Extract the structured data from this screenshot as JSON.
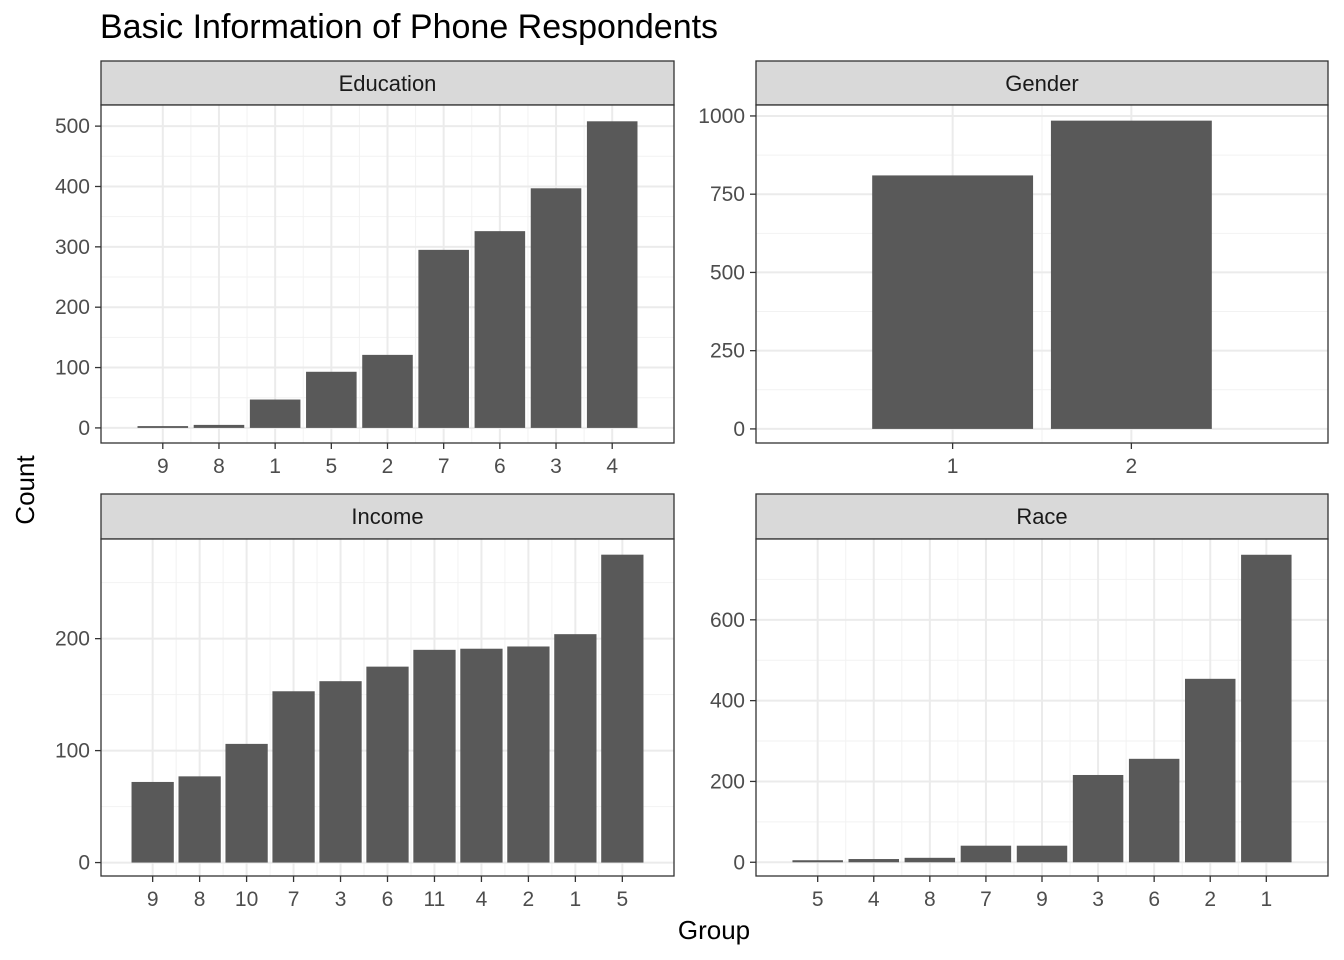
{
  "chart_data": {
    "type": "bar",
    "title": "Basic Information of Phone Respondents",
    "xlabel": "Group",
    "ylabel": "Count",
    "panels": [
      {
        "name": "Education",
        "categories": [
          "9",
          "8",
          "1",
          "5",
          "2",
          "7",
          "6",
          "3",
          "4"
        ],
        "values": [
          3,
          5,
          47,
          93,
          121,
          295,
          326,
          397,
          508
        ],
        "yticks": [
          0,
          100,
          200,
          300,
          400,
          500
        ],
        "ylim": [
          -25,
          535
        ]
      },
      {
        "name": "Gender",
        "categories": [
          "1",
          "2"
        ],
        "values": [
          810,
          985
        ],
        "yticks": [
          0,
          250,
          500,
          750,
          1000
        ],
        "ylim": [
          -45,
          1035
        ]
      },
      {
        "name": "Income",
        "categories": [
          "9",
          "8",
          "10",
          "7",
          "3",
          "6",
          "11",
          "4",
          "2",
          "1",
          "5"
        ],
        "values": [
          72,
          77,
          106,
          153,
          162,
          175,
          190,
          191,
          193,
          204,
          275
        ],
        "yticks": [
          0,
          100,
          200
        ],
        "ylim": [
          -12,
          289
        ]
      },
      {
        "name": "Race",
        "categories": [
          "5",
          "4",
          "8",
          "7",
          "9",
          "3",
          "6",
          "2",
          "1"
        ],
        "values": [
          5,
          8,
          11,
          41,
          41,
          216,
          256,
          454,
          761
        ],
        "yticks": [
          0,
          200,
          400,
          600
        ],
        "ylim": [
          -34,
          800
        ]
      }
    ],
    "grid": true,
    "bar_color": "#595959"
  }
}
